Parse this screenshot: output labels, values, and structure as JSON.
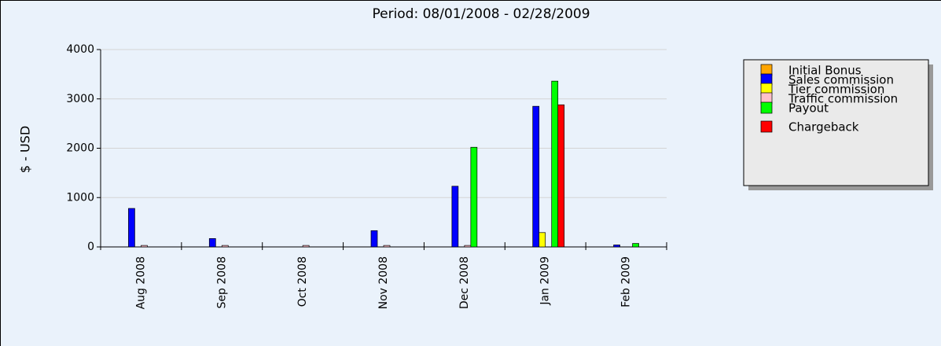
{
  "chart_data": {
    "type": "bar",
    "title": "Period: 08/01/2008 - 02/28/2009",
    "y_label": "$ - USD",
    "categories": [
      "Aug 2008",
      "Sep 2008",
      "Oct 2008",
      "Nov 2008",
      "Dec 2008",
      "Jan 2009",
      "Feb 2009"
    ],
    "series": [
      {
        "name": "Initial Bonus",
        "color": "#ffa500",
        "values": [
          0,
          0,
          0,
          0,
          0,
          0,
          0
        ]
      },
      {
        "name": "Sales commission",
        "color": "#0000ff",
        "values": [
          780,
          170,
          0,
          330,
          1230,
          2850,
          40
        ]
      },
      {
        "name": "Tier commission",
        "color": "#ffff00",
        "values": [
          0,
          0,
          0,
          0,
          0,
          290,
          0
        ]
      },
      {
        "name": "Traffic commission",
        "color": "#ffc0cb",
        "values": [
          30,
          30,
          30,
          30,
          30,
          0,
          0
        ]
      },
      {
        "name": "Payout",
        "color": "#00ff00",
        "values": [
          0,
          0,
          0,
          0,
          2020,
          3360,
          70
        ]
      },
      {
        "name": "Chargeback",
        "color": "#ff0000",
        "values": [
          0,
          0,
          0,
          0,
          0,
          2880,
          0
        ]
      }
    ],
    "ylim": [
      0,
      4000
    ],
    "yticks": [
      0,
      1000,
      2000,
      3000,
      4000
    ],
    "grid": true
  }
}
